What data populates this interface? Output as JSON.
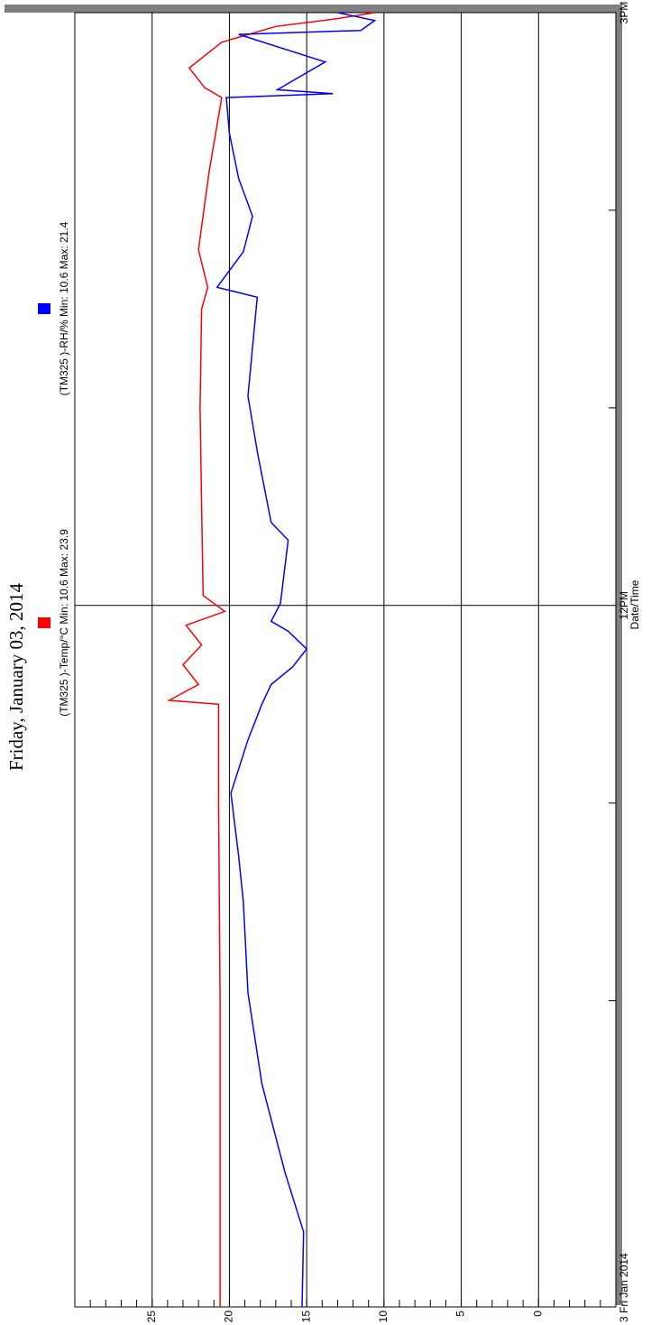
{
  "chart_data": {
    "type": "line",
    "title": "Friday, January 03, 2014",
    "xlabel": "Date/Time",
    "xlim": [
      8.45,
      15
    ],
    "xticks": [
      {
        "value": 8.45,
        "label": "3 Fri Jan 2014"
      },
      {
        "value": 12,
        "label": "12PM"
      },
      {
        "value": 15,
        "label": "3PM"
      }
    ],
    "xminor_ticks": [
      10,
      11,
      13,
      14
    ],
    "ylim": [
      30,
      -5
    ],
    "yticks": [
      25,
      20,
      15,
      10,
      5,
      0
    ],
    "yminor_ticks": [
      29,
      28,
      27,
      26,
      24,
      23,
      22,
      21,
      19,
      18,
      17,
      16,
      14,
      13,
      12,
      11,
      9,
      8,
      7,
      6,
      4,
      3,
      2,
      1,
      -1,
      -2,
      -3,
      -4
    ],
    "grid": true,
    "series": [
      {
        "name": "(TM325  )-Temp/°C Min: 10.6 Max: 23.9",
        "color": "#ff0000",
        "x": [
          8.45,
          10.0,
          11.0,
          11.5,
          11.52,
          11.6,
          11.7,
          11.8,
          11.9,
          11.97,
          12.05,
          12.5,
          13.0,
          13.5,
          13.61,
          13.8,
          14.2,
          14.57,
          14.62,
          14.72,
          14.85,
          14.93,
          14.97,
          15.0
        ],
        "values": [
          20.6,
          20.6,
          20.7,
          20.7,
          23.9,
          22.0,
          23.0,
          21.8,
          22.8,
          20.3,
          21.7,
          21.8,
          21.9,
          21.8,
          21.4,
          22.0,
          21.3,
          20.5,
          21.6,
          22.6,
          20.5,
          17.0,
          13.0,
          10.6
        ]
      },
      {
        "name": "(TM325  )-RH/% Min: 10.6 Max: 21.4",
        "color": "#0000ff",
        "x": [
          8.45,
          8.83,
          9.13,
          9.58,
          10.04,
          10.5,
          10.73,
          11.05,
          11.32,
          11.5,
          11.6,
          11.69,
          11.78,
          11.87,
          11.92,
          12.01,
          12.33,
          12.42,
          12.78,
          13.06,
          13.56,
          13.61,
          13.79,
          13.97,
          14.16,
          14.39,
          14.57,
          14.59,
          14.61,
          14.75,
          14.89,
          14.91,
          14.96,
          15.0
        ],
        "values": [
          15.3,
          15.2,
          16.4,
          17.9,
          18.8,
          19.1,
          19.4,
          19.9,
          18.8,
          17.9,
          17.3,
          15.9,
          15.0,
          16.2,
          17.3,
          16.7,
          16.2,
          17.3,
          18.2,
          18.8,
          18.2,
          20.8,
          19.1,
          18.5,
          19.4,
          20.0,
          20.2,
          13.3,
          16.9,
          13.8,
          19.4,
          11.5,
          10.6,
          13.0
        ]
      }
    ]
  }
}
